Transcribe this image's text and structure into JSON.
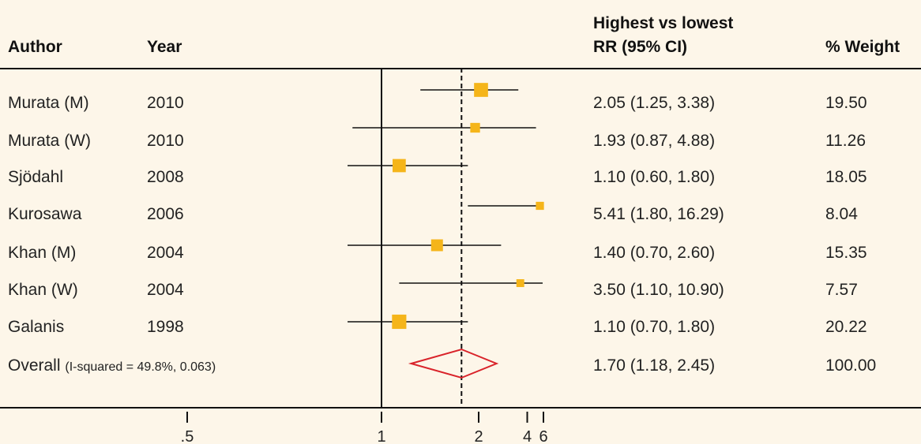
{
  "header": {
    "author": "Author",
    "year": "Year",
    "rr_line1": "Highest vs lowest",
    "rr_line2": "RR (95% CI)",
    "weight": "% Weight"
  },
  "colors": {
    "marker": "#f5b51a",
    "diamond": "#d9232a",
    "line": "#111111"
  },
  "chart_data": {
    "type": "forest",
    "null_line": 1,
    "pooled_line": 1.7,
    "x_ticks": [
      0.5,
      1,
      2,
      4,
      6
    ],
    "x_tick_labels": [
      ".5",
      "1",
      "2",
      "4",
      "6"
    ],
    "studies": [
      {
        "author": "Murata (M)",
        "year": "2010",
        "rr": 2.05,
        "lo": 1.25,
        "hi": 3.38,
        "rr_text": "2.05 (1.25, 3.38)",
        "weight": 19.5,
        "weight_text": "19.50"
      },
      {
        "author": "Murata (W)",
        "year": "2010",
        "rr": 1.93,
        "lo": 0.87,
        "hi": 4.88,
        "rr_text": "1.93 (0.87, 4.88)",
        "weight": 11.26,
        "weight_text": "11.26"
      },
      {
        "author": "Sjödahl",
        "year": "2008",
        "rr": 1.1,
        "lo": 0.6,
        "hi": 1.8,
        "rr_text": "1.10 (0.60, 1.80)",
        "weight": 18.05,
        "weight_text": "18.05"
      },
      {
        "author": "Kurosawa",
        "year": "2006",
        "rr": 5.41,
        "lo": 1.8,
        "hi": 16.29,
        "rr_text": "5.41 (1.80, 16.29)",
        "weight": 8.04,
        "weight_text": "8.04"
      },
      {
        "author": "Khan (M)",
        "year": "2004",
        "rr": 1.4,
        "lo": 0.7,
        "hi": 2.6,
        "rr_text": "1.40 (0.70, 2.60)",
        "weight": 15.35,
        "weight_text": "15.35"
      },
      {
        "author": "Khan (W)",
        "year": "2004",
        "rr": 3.5,
        "lo": 1.1,
        "hi": 10.9,
        "rr_text": "3.50 (1.10, 10.90)",
        "weight": 7.57,
        "weight_text": "7.57"
      },
      {
        "author": "Galanis",
        "year": "1998",
        "rr": 1.1,
        "lo": 0.7,
        "hi": 1.8,
        "rr_text": "1.10 (0.70, 1.80)",
        "weight": 20.22,
        "weight_text": "20.22"
      }
    ],
    "overall": {
      "label": "Overall",
      "note": "(I-squared = 49.8%, 0.063)",
      "rr": 1.7,
      "lo": 1.18,
      "hi": 2.45,
      "rr_text": "1.70 (1.18, 2.45)",
      "weight_text": "100.00"
    }
  }
}
